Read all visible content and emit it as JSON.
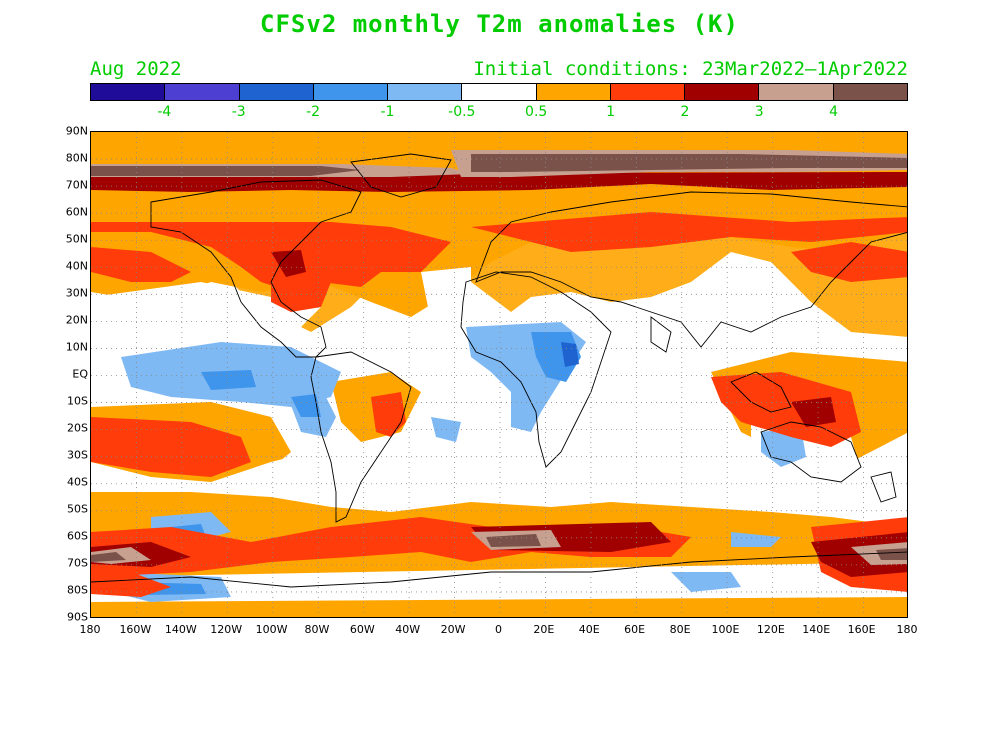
{
  "title": "CFSv2 monthly T2m anomalies (K)",
  "subtitle_left": "Aug 2022",
  "subtitle_right": "Initial conditions: 23Mar2022—1Apr2022",
  "colorbar": {
    "colors": [
      "#1f0d99",
      "#4c3fd1",
      "#1f63d1",
      "#3f94ec",
      "#7fb9f4",
      "#ffffff",
      "#ffa500",
      "#ff3c0a",
      "#a00000",
      "#c8a090",
      "#7a524a"
    ],
    "labels": [
      "-4",
      "-3",
      "-2",
      "-1",
      "-0.5",
      "0.5",
      "1",
      "2",
      "3",
      "4"
    ]
  },
  "lat_labels": [
    "90N",
    "80N",
    "70N",
    "60N",
    "50N",
    "40N",
    "30N",
    "20N",
    "10N",
    "EQ",
    "10S",
    "20S",
    "30S",
    "40S",
    "50S",
    "60S",
    "70S",
    "80S",
    "90S"
  ],
  "lon_labels": [
    "180",
    "160W",
    "140W",
    "120W",
    "100W",
    "80W",
    "60W",
    "40W",
    "20W",
    "0",
    "20E",
    "40E",
    "60E",
    "80E",
    "100E",
    "120E",
    "140E",
    "160E",
    "180"
  ]
}
